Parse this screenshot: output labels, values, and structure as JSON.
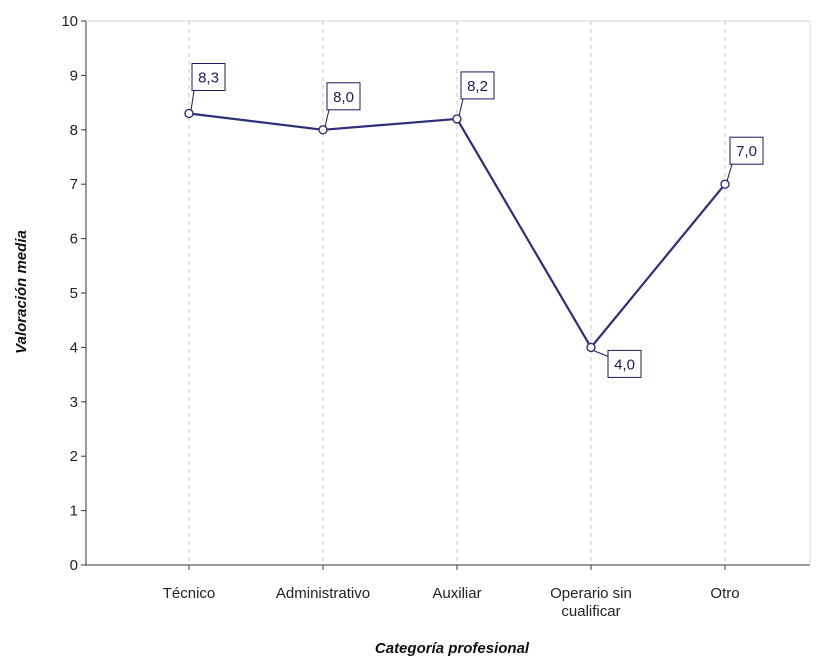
{
  "chart_data": {
    "type": "line",
    "categories": [
      "Técnico",
      "Administrativo",
      "Auxiliar",
      "Operario sin cualificar",
      "Otro"
    ],
    "category_label_lines": [
      [
        "Técnico"
      ],
      [
        "Administrativo"
      ],
      [
        "Auxiliar"
      ],
      [
        "Operario sin",
        "cualificar"
      ],
      [
        "Otro"
      ]
    ],
    "series": [
      {
        "values": [
          8.3,
          8.0,
          8.2,
          4.0,
          7.0
        ]
      }
    ],
    "data_labels": [
      "8,3",
      "8,0",
      "8,2",
      "4,0",
      "7,0"
    ],
    "xlabel": "Categoría profesional",
    "ylabel": "Valoración media",
    "ylim": [
      0,
      10
    ],
    "yticks": [
      "0",
      "1",
      "2",
      "3",
      "4",
      "5",
      "6",
      "7",
      "8",
      "9",
      "10"
    ],
    "grid": "vertical dashed",
    "line_color": "#2e2e7a",
    "label_color": "#1b1b5e"
  }
}
